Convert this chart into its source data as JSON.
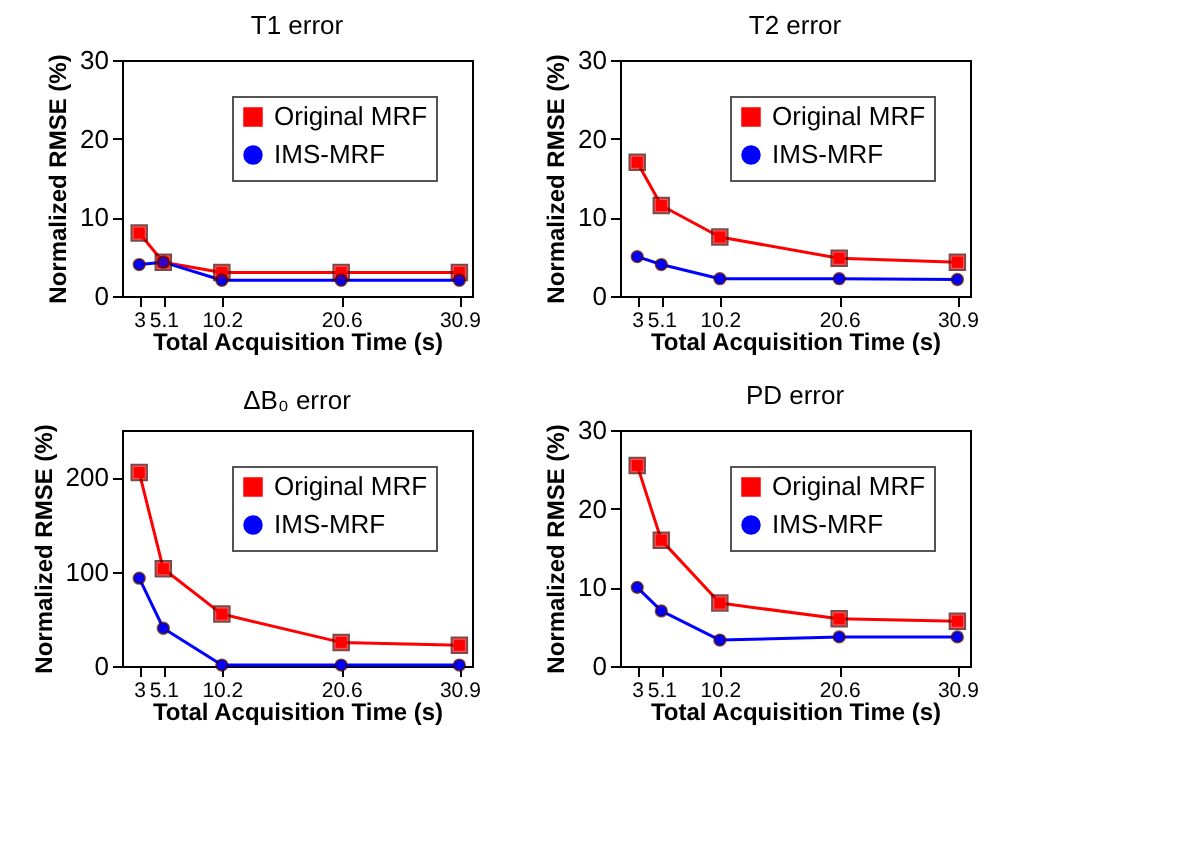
{
  "chart_data": [
    {
      "type": "line",
      "title": "T1 error",
      "xlabel": "Total Acquisition Time (s)",
      "ylabel": "Normalized RMSE (%)",
      "x": [
        3,
        5.1,
        10.2,
        20.6,
        30.9
      ],
      "xlim": [
        1.5,
        32
      ],
      "xticks": [
        3,
        5.1,
        10.2,
        20.6,
        30.9
      ],
      "ylim": [
        0,
        30
      ],
      "yticks": [
        0,
        10,
        20,
        30
      ],
      "legend": "top right",
      "grid": false,
      "line_style": "solid",
      "series": [
        {
          "name": "Original MRF",
          "color": "#ff0000",
          "marker": "square",
          "values": [
            8,
            4.3,
            3,
            3,
            3
          ]
        },
        {
          "name": "IMS-MRF",
          "color": "#0000ff",
          "marker": "circle",
          "values": [
            4,
            4.3,
            2,
            2,
            2
          ]
        }
      ]
    },
    {
      "type": "line",
      "title": "T2 error",
      "xlabel": "Total Acquisition Time (s)",
      "ylabel": "Normalized RMSE (%)",
      "x": [
        3,
        5.1,
        10.2,
        20.6,
        30.9
      ],
      "xlim": [
        1.5,
        32
      ],
      "xticks": [
        3,
        5.1,
        10.2,
        20.6,
        30.9
      ],
      "ylim": [
        0,
        30
      ],
      "yticks": [
        0,
        10,
        20,
        30
      ],
      "legend": "top right",
      "grid": false,
      "line_style": "solid",
      "series": [
        {
          "name": "Original MRF",
          "color": "#ff0000",
          "marker": "square",
          "values": [
            17,
            11.5,
            7.5,
            4.8,
            4.3
          ]
        },
        {
          "name": "IMS-MRF",
          "color": "#0000ff",
          "marker": "circle",
          "values": [
            5,
            4,
            2.2,
            2.2,
            2.1
          ]
        }
      ]
    },
    {
      "type": "line",
      "title": "ΔB₀ error",
      "xlabel": "Total Acquisition Time (s)",
      "ylabel": "Normalized RMSE (%)",
      "x": [
        3,
        5.1,
        10.2,
        20.6,
        30.9
      ],
      "xlim": [
        1.5,
        32
      ],
      "xticks": [
        3,
        5.1,
        10.2,
        20.6,
        30.9
      ],
      "ylim": [
        0,
        250
      ],
      "yticks": [
        0,
        100,
        200
      ],
      "legend": "top right",
      "grid": false,
      "line_style": "solid",
      "series": [
        {
          "name": "Original MRF",
          "color": "#ff0000",
          "marker": "square",
          "values": [
            205,
            103,
            55,
            25,
            22
          ]
        },
        {
          "name": "IMS-MRF",
          "color": "#0000ff",
          "marker": "circle",
          "values": [
            93,
            40,
            1,
            1,
            1
          ]
        }
      ]
    },
    {
      "type": "line",
      "title": "PD error",
      "xlabel": "Total Acquisition Time (s)",
      "ylabel": "Normalized RMSE (%)",
      "x": [
        3,
        5.1,
        10.2,
        20.6,
        30.9
      ],
      "xlim": [
        1.5,
        32
      ],
      "xticks": [
        3,
        5.1,
        10.2,
        20.6,
        30.9
      ],
      "ylim": [
        0,
        30
      ],
      "yticks": [
        0,
        10,
        20,
        30
      ],
      "legend": "top right",
      "grid": false,
      "line_style": "solid",
      "series": [
        {
          "name": "Original MRF",
          "color": "#ff0000",
          "marker": "square",
          "values": [
            25.5,
            16,
            8,
            6,
            5.7
          ]
        },
        {
          "name": "IMS-MRF",
          "color": "#0000ff",
          "marker": "circle",
          "values": [
            10,
            7,
            3.3,
            3.7,
            3.7
          ]
        }
      ]
    }
  ]
}
